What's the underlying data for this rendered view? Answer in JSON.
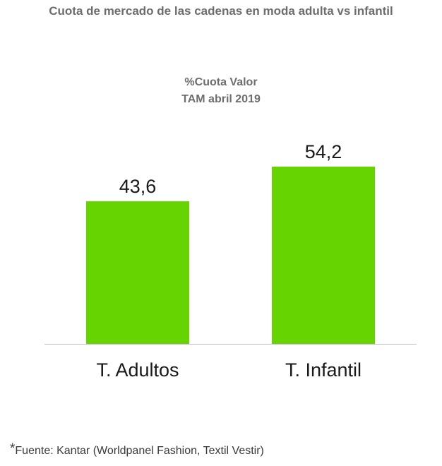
{
  "header": {
    "title": "Cuota de mercado de las cadenas en moda adulta vs infantil"
  },
  "chart_data": {
    "type": "bar",
    "title": "%Cuota Valor",
    "subtitle": "TAM abril 2019",
    "categories": [
      "T. Adultos",
      "T. Infantil"
    ],
    "values": [
      43.6,
      54.2
    ],
    "value_labels": [
      "43,6",
      "54,2"
    ],
    "xlabel": "",
    "ylabel": "",
    "ylim": [
      0,
      54.2
    ],
    "grid": false,
    "legend": "none",
    "bar_color": "#66d400",
    "axis_color": "#bfbfbf"
  },
  "footer": {
    "star": "*",
    "source": "Fuente: Kantar (Worldpanel Fashion, Textil Vestir)"
  }
}
